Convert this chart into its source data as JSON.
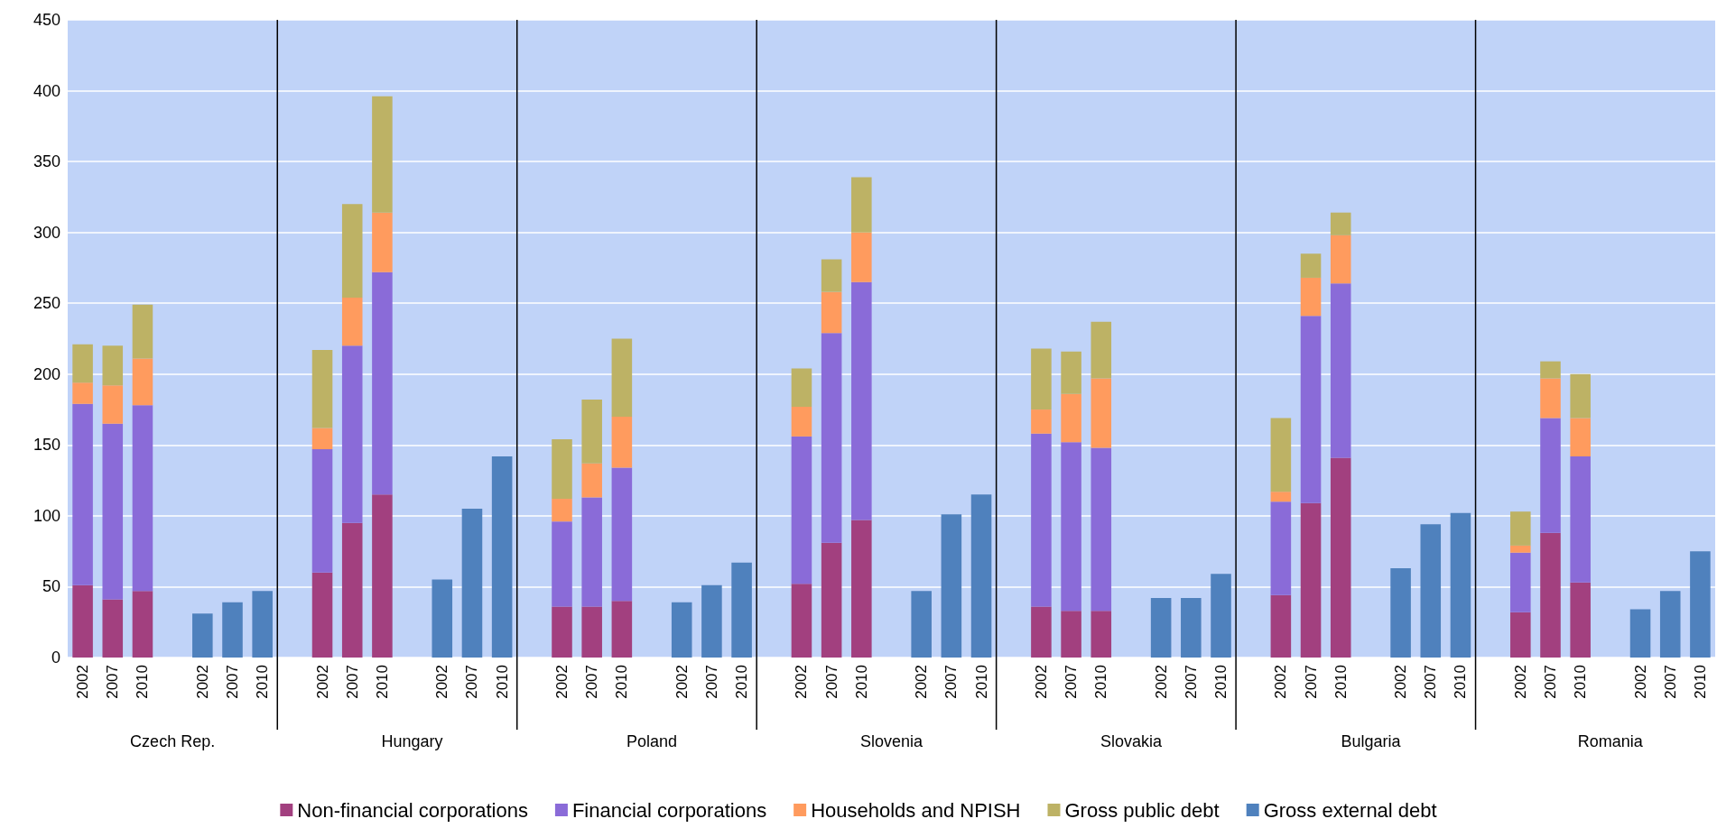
{
  "chart_data": {
    "type": "bar",
    "stacked": true,
    "categories": [
      "2002",
      "2007",
      "2010",
      null,
      "2002",
      "2007",
      "2010",
      null,
      "2002",
      "2007",
      "2010",
      null,
      "2002",
      "2007",
      "2010",
      null,
      "2002",
      "2007",
      "2010",
      null,
      "2002",
      "2007",
      "2010",
      null,
      "2002",
      "2007",
      "2010",
      null,
      "2002",
      "2007",
      "2010",
      null,
      "2002",
      "2007",
      "2010",
      null,
      "2002",
      "2007",
      "2010",
      null,
      "2002",
      "2007",
      "2010",
      null,
      "2002",
      "2007",
      "2010",
      null,
      "2002",
      "2007",
      "2010",
      null,
      "2002",
      "2007",
      "2010"
    ],
    "series": [
      {
        "name": "Non-financial corporations",
        "color": "#a2407f",
        "values": [
          51,
          41,
          47,
          null,
          null,
          null,
          null,
          null,
          60,
          95,
          115,
          null,
          null,
          null,
          null,
          null,
          36,
          36,
          40,
          null,
          null,
          null,
          null,
          null,
          52,
          81,
          97,
          null,
          null,
          null,
          null,
          null,
          36,
          33,
          33,
          null,
          null,
          null,
          null,
          null,
          44,
          109,
          141,
          null,
          null,
          null,
          null,
          null,
          32,
          88,
          53,
          null,
          null,
          null,
          null
        ]
      },
      {
        "name": "Financial corporations",
        "color": "#8a6bd8",
        "values": [
          128,
          124,
          131,
          null,
          null,
          null,
          null,
          null,
          87,
          125,
          157,
          null,
          null,
          null,
          null,
          null,
          60,
          77,
          94,
          null,
          null,
          null,
          null,
          null,
          104,
          148,
          168,
          null,
          null,
          null,
          null,
          null,
          122,
          119,
          115,
          null,
          null,
          null,
          null,
          null,
          66,
          132,
          123,
          null,
          null,
          null,
          null,
          null,
          42,
          81,
          89,
          null,
          null,
          null,
          null
        ]
      },
      {
        "name": "Households and NPISH",
        "color": "#ff9b5e",
        "values": [
          15,
          27,
          33,
          null,
          null,
          null,
          null,
          null,
          15,
          34,
          42,
          null,
          null,
          null,
          null,
          null,
          16,
          24,
          36,
          null,
          null,
          null,
          null,
          null,
          21,
          29,
          35,
          null,
          null,
          null,
          null,
          null,
          17,
          34,
          49,
          null,
          null,
          null,
          null,
          null,
          7,
          27,
          34,
          null,
          null,
          null,
          null,
          null,
          5,
          28,
          27,
          null,
          null,
          null,
          null
        ]
      },
      {
        "name": "Gross public debt",
        "color": "#bdb265",
        "values": [
          27,
          28,
          38,
          null,
          null,
          null,
          null,
          null,
          55,
          66,
          82,
          null,
          null,
          null,
          null,
          null,
          42,
          45,
          55,
          null,
          null,
          null,
          null,
          null,
          27,
          23,
          39,
          null,
          null,
          null,
          null,
          null,
          43,
          30,
          40,
          null,
          null,
          null,
          null,
          null,
          52,
          17,
          16,
          null,
          null,
          null,
          null,
          null,
          24,
          12,
          31,
          null,
          null,
          null,
          null
        ]
      },
      {
        "name": "Gross external debt",
        "color": "#4f81bd",
        "values": [
          null,
          null,
          null,
          null,
          31,
          39,
          47,
          null,
          null,
          null,
          null,
          null,
          55,
          105,
          142,
          null,
          null,
          null,
          null,
          null,
          39,
          51,
          67,
          null,
          null,
          null,
          null,
          null,
          47,
          101,
          115,
          null,
          null,
          null,
          null,
          null,
          42,
          42,
          59,
          null,
          null,
          null,
          null,
          null,
          63,
          94,
          102,
          null,
          null,
          null,
          null,
          null,
          34,
          47,
          75
        ]
      }
    ],
    "ylim": [
      0,
      450
    ],
    "yticks": [
      0,
      50,
      100,
      150,
      200,
      250,
      300,
      350,
      400,
      450
    ],
    "grid": "y",
    "legend": "bottom",
    "annotations": [
      "Czech Rep.",
      "Hungary",
      "Poland",
      "Slovenia",
      "Slovakia",
      "Bulgaria",
      "Romania"
    ]
  }
}
